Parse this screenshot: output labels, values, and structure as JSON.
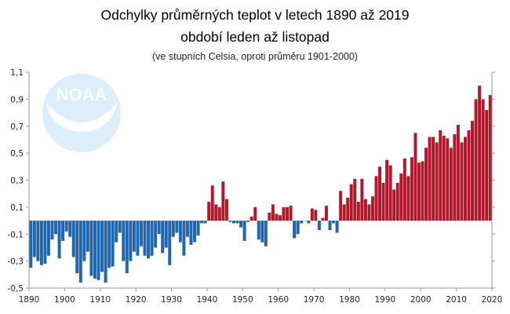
{
  "chart_data": {
    "type": "bar",
    "title": "Odchylky průměrných teplot v letech 1890 až 2019",
    "subtitle": "období leden až listopad",
    "note": "(ve stupních Celsia, oproti průměru 1901-2000)",
    "logo": "NOAA",
    "xlabel": "",
    "ylabel": "",
    "xlim": [
      1890,
      2020
    ],
    "ylim": [
      -0.5,
      1.1
    ],
    "x_ticks": [
      "1890",
      "1900",
      "1910",
      "1920",
      "1930",
      "1940",
      "1950",
      "1960",
      "1970",
      "1980",
      "1990",
      "2000",
      "2010",
      "2020"
    ],
    "y_ticks": [
      "1,1",
      "0,9",
      "0,7",
      "0,5",
      "0,3",
      "0,1",
      "-0,1",
      "-0,3",
      "-0,5"
    ],
    "grid": false,
    "colors": {
      "positive": "#b2182b",
      "negative": "#2166ac",
      "logo": "#dbeef9"
    },
    "years": [
      1890,
      1891,
      1892,
      1893,
      1894,
      1895,
      1896,
      1897,
      1898,
      1899,
      1900,
      1901,
      1902,
      1903,
      1904,
      1905,
      1906,
      1907,
      1908,
      1909,
      1910,
      1911,
      1912,
      1913,
      1914,
      1915,
      1916,
      1917,
      1918,
      1919,
      1920,
      1921,
      1922,
      1923,
      1924,
      1925,
      1926,
      1927,
      1928,
      1929,
      1930,
      1931,
      1932,
      1933,
      1934,
      1935,
      1936,
      1937,
      1938,
      1939,
      1940,
      1941,
      1942,
      1943,
      1944,
      1945,
      1946,
      1947,
      1948,
      1949,
      1950,
      1951,
      1952,
      1953,
      1954,
      1955,
      1956,
      1957,
      1958,
      1959,
      1960,
      1961,
      1962,
      1963,
      1964,
      1965,
      1966,
      1967,
      1968,
      1969,
      1970,
      1971,
      1972,
      1973,
      1974,
      1975,
      1976,
      1977,
      1978,
      1979,
      1980,
      1981,
      1982,
      1983,
      1984,
      1985,
      1986,
      1987,
      1988,
      1989,
      1990,
      1991,
      1992,
      1993,
      1994,
      1995,
      1996,
      1997,
      1998,
      1999,
      2000,
      2001,
      2002,
      2003,
      2004,
      2005,
      2006,
      2007,
      2008,
      2009,
      2010,
      2011,
      2012,
      2013,
      2014,
      2015,
      2016,
      2017,
      2018,
      2019
    ],
    "values": [
      -0.35,
      -0.27,
      -0.3,
      -0.33,
      -0.32,
      -0.26,
      -0.14,
      -0.1,
      -0.28,
      -0.15,
      -0.08,
      -0.12,
      -0.27,
      -0.39,
      -0.46,
      -0.3,
      -0.23,
      -0.41,
      -0.43,
      -0.44,
      -0.38,
      -0.46,
      -0.35,
      -0.34,
      -0.16,
      -0.09,
      -0.3,
      -0.39,
      -0.3,
      -0.23,
      -0.26,
      -0.19,
      -0.26,
      -0.28,
      -0.26,
      -0.2,
      -0.1,
      -0.24,
      -0.2,
      -0.33,
      -0.12,
      -0.09,
      -0.16,
      -0.26,
      -0.12,
      -0.18,
      -0.16,
      -0.11,
      -0.02,
      -0.02,
      0.14,
      0.26,
      0.12,
      0.1,
      0.29,
      0.16,
      -0.01,
      -0.02,
      -0.02,
      -0.05,
      -0.15,
      -0.01,
      0.03,
      0.1,
      -0.14,
      -0.16,
      -0.19,
      0.06,
      0.12,
      0.05,
      0.04,
      0.1,
      0.1,
      0.11,
      -0.13,
      -0.1,
      -0.02,
      0.0,
      -0.02,
      0.09,
      0.08,
      -0.07,
      0.02,
      0.11,
      -0.07,
      -0.02,
      -0.09,
      0.22,
      0.12,
      0.17,
      0.27,
      0.31,
      0.14,
      0.31,
      0.16,
      0.12,
      0.18,
      0.33,
      0.4,
      0.28,
      0.45,
      0.41,
      0.23,
      0.28,
      0.35,
      0.46,
      0.33,
      0.47,
      0.65,
      0.43,
      0.44,
      0.54,
      0.62,
      0.62,
      0.58,
      0.67,
      0.63,
      0.61,
      0.54,
      0.64,
      0.71,
      0.58,
      0.62,
      0.67,
      0.74,
      0.9,
      1.0,
      0.9,
      0.82,
      0.93
    ]
  }
}
